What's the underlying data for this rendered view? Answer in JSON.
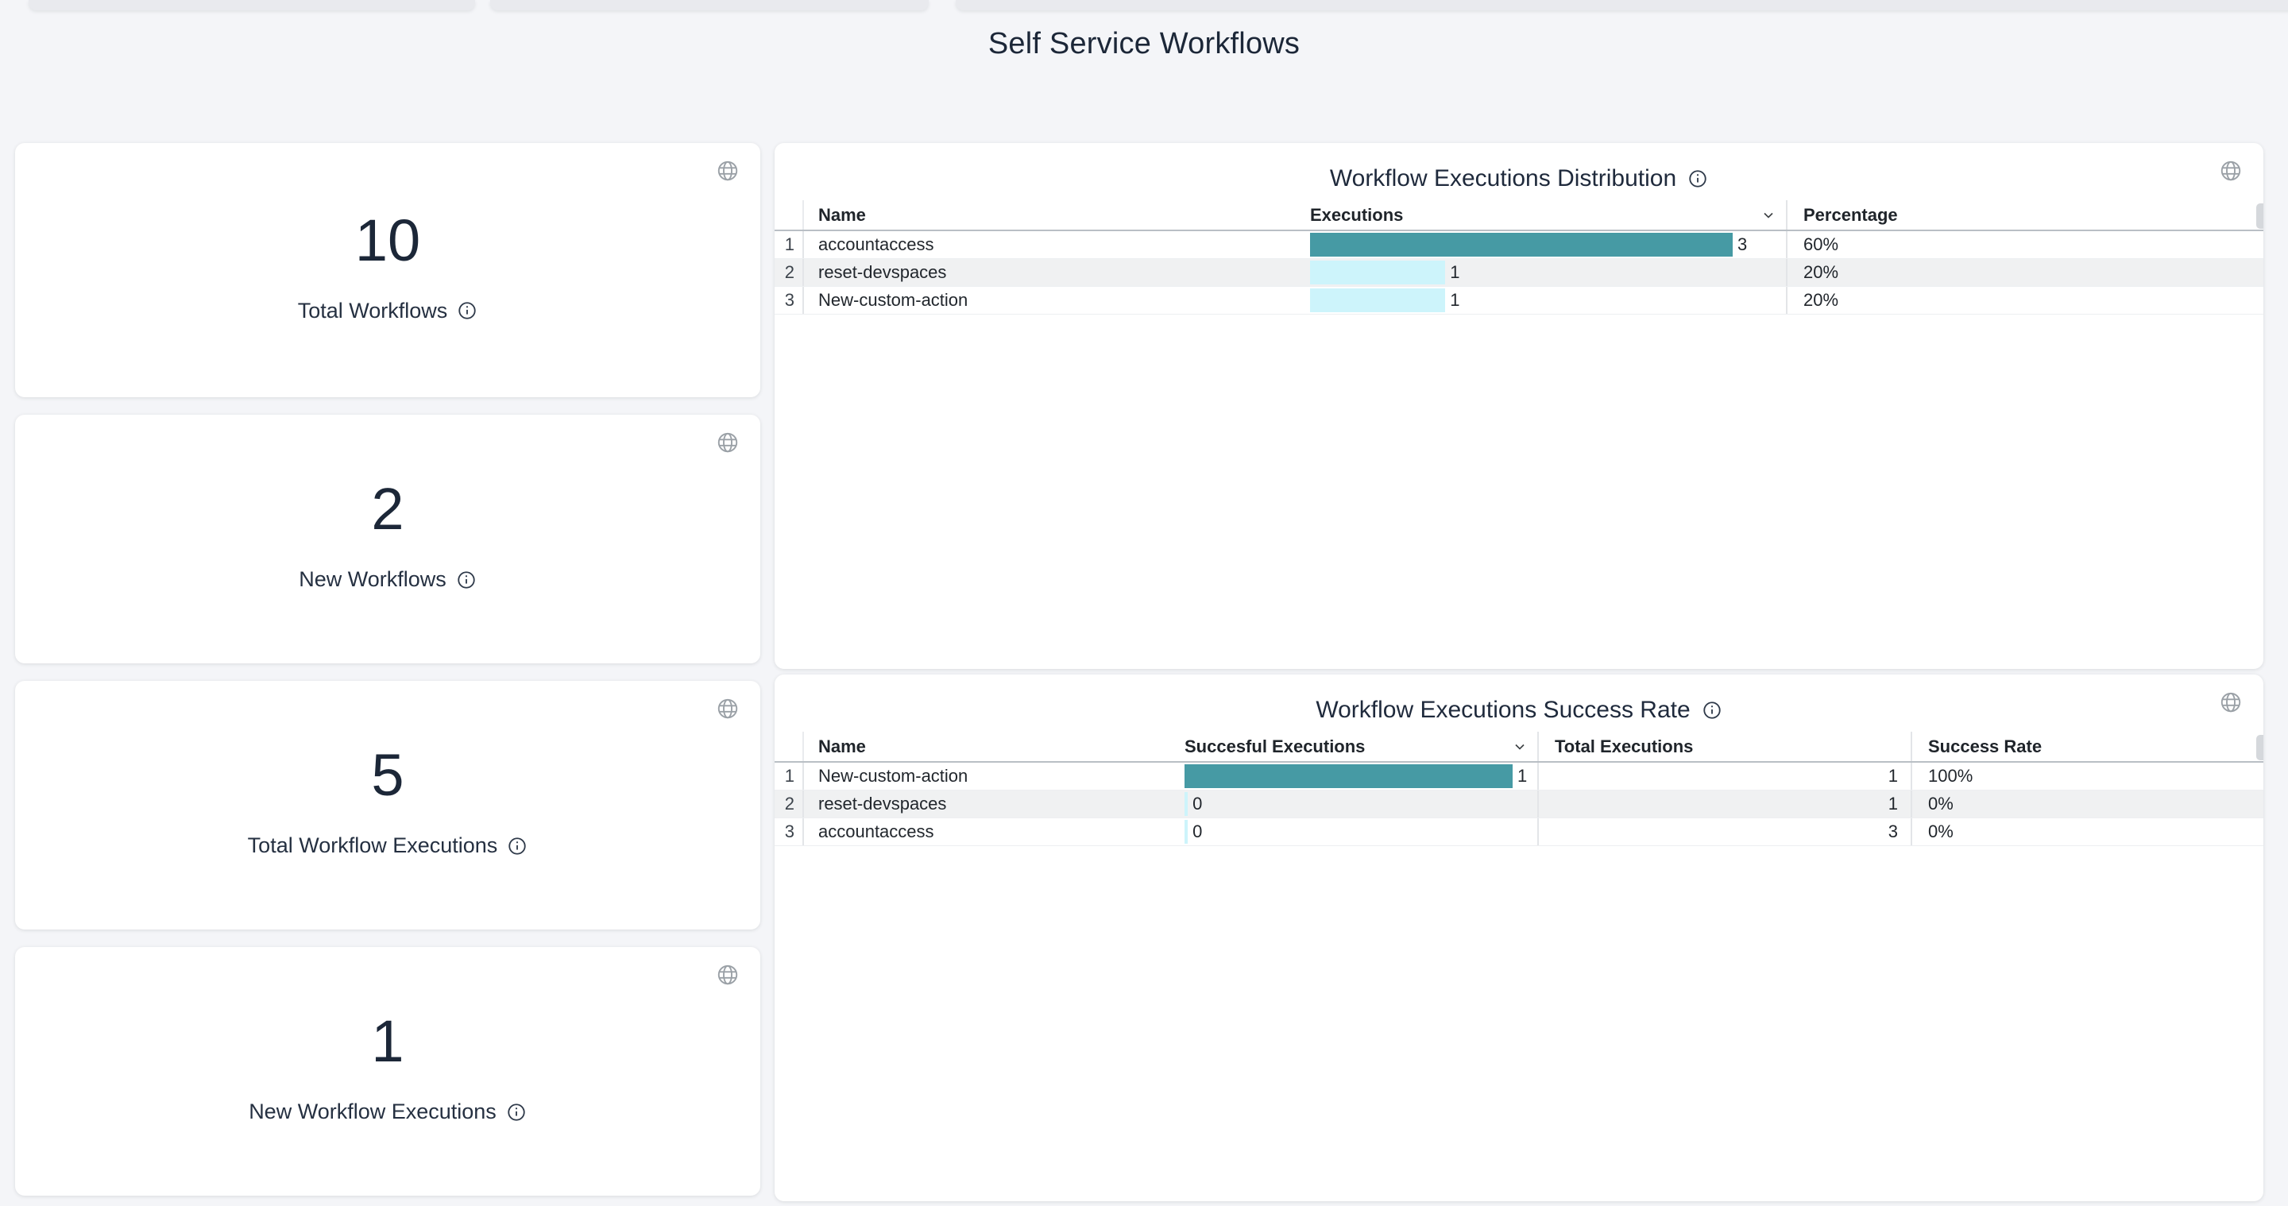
{
  "page": {
    "title": "Self Service Workflows"
  },
  "colors": {
    "background": "#f4f5f8",
    "card": "#ffffff",
    "text_dark": "#1c2738",
    "bar_teal": "#469aa4",
    "bar_cyan": "#cdf4fb",
    "zebra_row": "#f0f1f2",
    "icon_gray": "#9aa0a6"
  },
  "stats": [
    {
      "value": "10",
      "label": "Total Workflows"
    },
    {
      "value": "2",
      "label": "New Workflows"
    },
    {
      "value": "5",
      "label": "Total Workflow Executions"
    },
    {
      "value": "1",
      "label": "New Workflow Executions"
    }
  ],
  "tables": [
    {
      "title": "Workflow Executions Distribution",
      "columns": [
        "Name",
        "Executions",
        "Percentage"
      ],
      "sorted_by": "Executions",
      "rows": [
        {
          "num": "1",
          "name": "accountaccess",
          "value": "3",
          "bar_pct": 100,
          "bar_color": "#469aa4",
          "percentage": "60%"
        },
        {
          "num": "2",
          "name": "reset-devspaces",
          "value": "1",
          "bar_pct": 32,
          "bar_color": "#cdf4fb",
          "percentage": "20%"
        },
        {
          "num": "3",
          "name": "New-custom-action",
          "value": "1",
          "bar_pct": 32,
          "bar_color": "#cdf4fb",
          "percentage": "20%"
        }
      ]
    },
    {
      "title": "Workflow Executions Success Rate",
      "columns": [
        "Name",
        "Succesful Executions",
        "Total Executions",
        "Success Rate"
      ],
      "sorted_by": "Succesful Executions",
      "rows": [
        {
          "num": "1",
          "name": "New-custom-action",
          "value": "1",
          "bar_pct": 100,
          "bar_color": "#469aa4",
          "total": "1",
          "rate": "100%"
        },
        {
          "num": "2",
          "name": "reset-devspaces",
          "value": "0",
          "bar_pct": 1,
          "bar_color": "#cdf4fb",
          "total": "1",
          "rate": "0%"
        },
        {
          "num": "3",
          "name": "accountaccess",
          "value": "0",
          "bar_pct": 1,
          "bar_color": "#cdf4fb",
          "total": "3",
          "rate": "0%"
        }
      ]
    }
  ],
  "chart_data": [
    {
      "type": "table",
      "title": "Workflow Executions Distribution",
      "columns": [
        "Name",
        "Executions",
        "Percentage"
      ],
      "rows": [
        [
          "accountaccess",
          3,
          "60%"
        ],
        [
          "reset-devspaces",
          1,
          "20%"
        ],
        [
          "New-custom-action",
          1,
          "20%"
        ]
      ],
      "bar_column": "Executions",
      "bar_max": 3
    },
    {
      "type": "table",
      "title": "Workflow Executions Success Rate",
      "columns": [
        "Name",
        "Succesful Executions",
        "Total Executions",
        "Success Rate"
      ],
      "rows": [
        [
          "New-custom-action",
          1,
          1,
          "100%"
        ],
        [
          "reset-devspaces",
          0,
          1,
          "0%"
        ],
        [
          "accountaccess",
          0,
          3,
          "0%"
        ]
      ],
      "bar_column": "Succesful Executions",
      "bar_max": 1
    }
  ]
}
